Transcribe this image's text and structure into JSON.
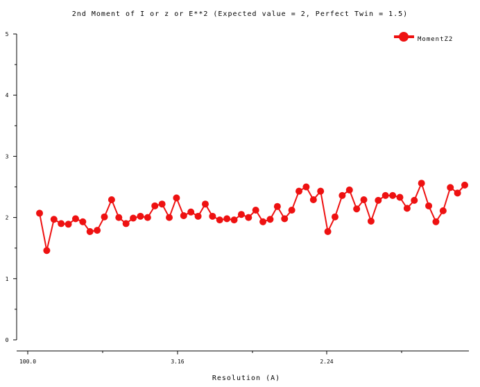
{
  "chart_data": {
    "type": "line",
    "title": "2nd Moment of I or z or E**2 (Expected value = 2, Perfect Twin = 1.5)",
    "xlabel": "Resolution (A)",
    "ylabel": "",
    "x_tick_labels": [
      "100.0",
      "3.16",
      "2.24"
    ],
    "y_ticks": [
      0,
      1,
      2,
      3,
      4,
      5
    ],
    "ylim": [
      0,
      5
    ],
    "legend_position": "top-right",
    "series": [
      {
        "name": "MomentZ2",
        "color": "#ee1111",
        "values": [
          2.07,
          1.46,
          1.97,
          1.9,
          1.89,
          1.98,
          1.93,
          1.77,
          1.79,
          2.01,
          2.29,
          2.0,
          1.9,
          1.99,
          2.02,
          2.0,
          2.19,
          2.22,
          2.0,
          2.32,
          2.03,
          2.09,
          2.02,
          2.22,
          2.02,
          1.96,
          1.98,
          1.96,
          2.05,
          2.0,
          2.12,
          1.93,
          1.97,
          2.18,
          1.98,
          2.12,
          2.43,
          2.5,
          2.29,
          2.43,
          1.77,
          2.01,
          2.36,
          2.45,
          2.14,
          2.29,
          1.94,
          2.28,
          2.36,
          2.36,
          2.33,
          2.15,
          2.28,
          2.56,
          2.19,
          1.93,
          2.11,
          2.49,
          2.4,
          2.53
        ]
      }
    ]
  }
}
